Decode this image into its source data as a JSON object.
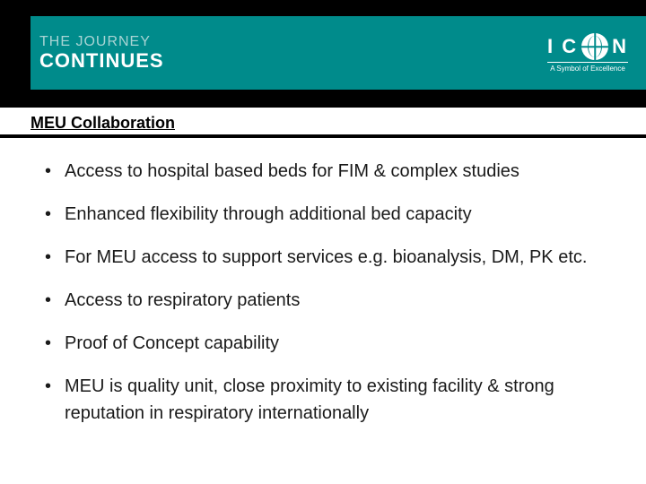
{
  "header": {
    "journey_line1": "THE JOURNEY",
    "journey_line2": "CONTINUES",
    "logo_text": "IC   N",
    "logo_tagline": "A Symbol of Excellence"
  },
  "title": "MEU Collaboration",
  "bullets": [
    "Access to hospital based beds for FIM & complex studies",
    "Enhanced flexibility through additional bed capacity",
    "For MEU access to support services e.g. bioanalysis, DM, PK etc.",
    "Access to respiratory patients",
    "Proof of Concept capability",
    "MEU is quality unit, close proximity to existing facility & strong reputation in respiratory internationally"
  ],
  "colors": {
    "teal": "#008b8b",
    "black": "#000000",
    "white": "#ffffff",
    "text": "#1a1a1a"
  }
}
